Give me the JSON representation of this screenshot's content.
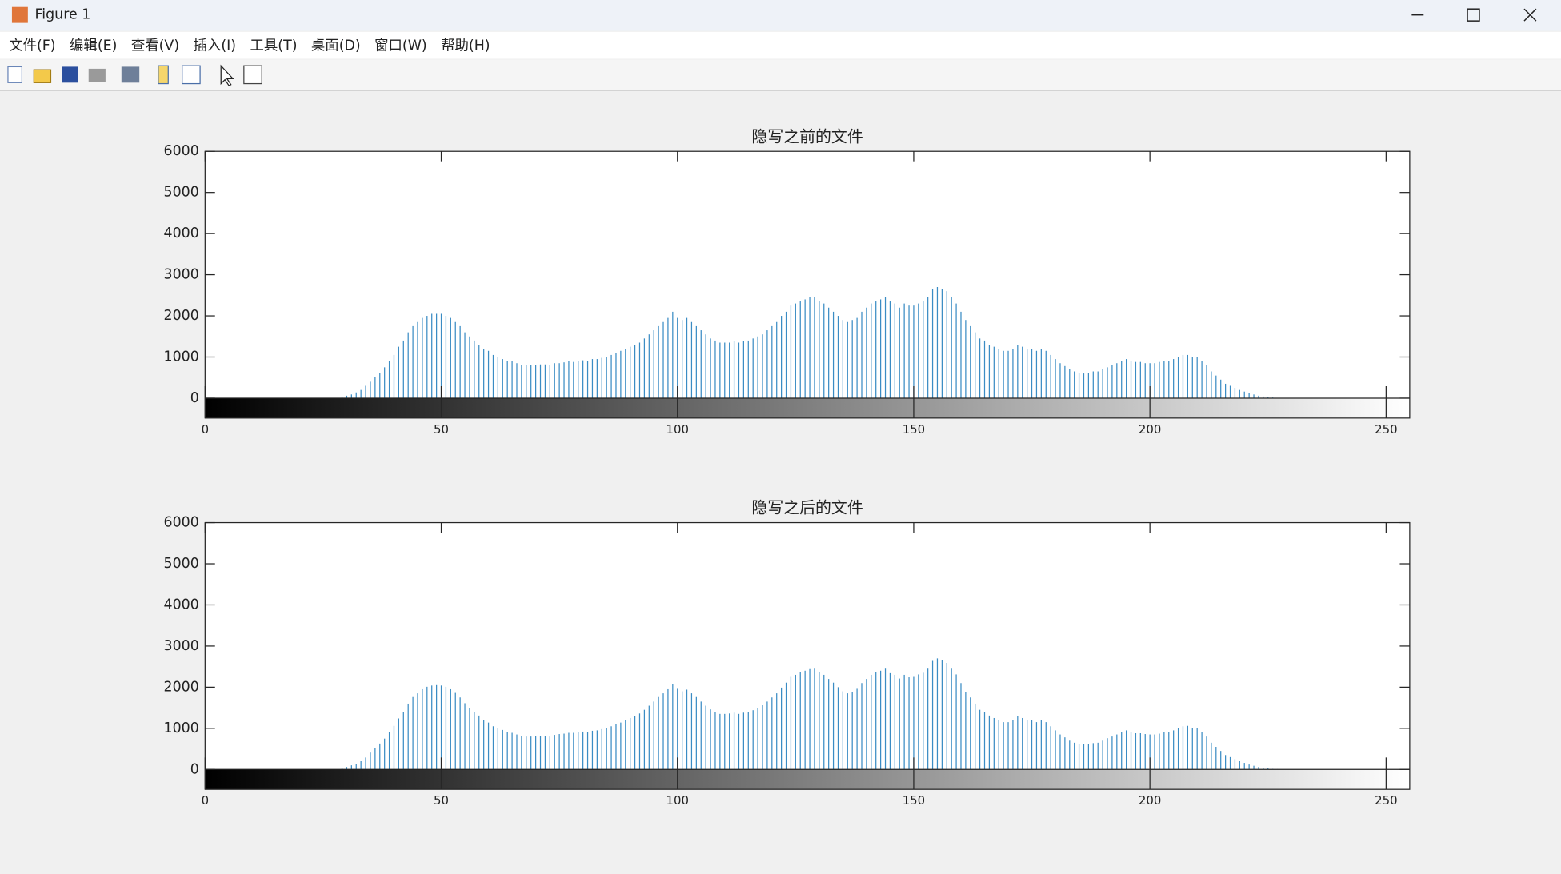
{
  "window": {
    "title": "Figure 1",
    "menu": [
      "文件(F)",
      "编辑(E)",
      "查看(V)",
      "插入(I)",
      "工具(T)",
      "桌面(D)",
      "窗口(W)",
      "帮助(H)"
    ]
  },
  "chart_data": [
    {
      "type": "stem",
      "title": "隐写之前的文件",
      "color": "#3a8cc4",
      "x": [
        0,
        1,
        2,
        3,
        4,
        5,
        6,
        7,
        8,
        9,
        10,
        11,
        12,
        13,
        14,
        15,
        16,
        17,
        18,
        19,
        20,
        21,
        22,
        23,
        24,
        25,
        26,
        27,
        28,
        29,
        30,
        31,
        32,
        33,
        34,
        35,
        36,
        37,
        38,
        39,
        40,
        41,
        42,
        43,
        44,
        45,
        46,
        47,
        48,
        49,
        50,
        51,
        52,
        53,
        54,
        55,
        56,
        57,
        58,
        59,
        60,
        61,
        62,
        63,
        64,
        65,
        66,
        67,
        68,
        69,
        70,
        71,
        72,
        73,
        74,
        75,
        76,
        77,
        78,
        79,
        80,
        81,
        82,
        83,
        84,
        85,
        86,
        87,
        88,
        89,
        90,
        91,
        92,
        93,
        94,
        95,
        96,
        97,
        98,
        99,
        100,
        101,
        102,
        103,
        104,
        105,
        106,
        107,
        108,
        109,
        110,
        111,
        112,
        113,
        114,
        115,
        116,
        117,
        118,
        119,
        120,
        121,
        122,
        123,
        124,
        125,
        126,
        127,
        128,
        129,
        130,
        131,
        132,
        133,
        134,
        135,
        136,
        137,
        138,
        139,
        140,
        141,
        142,
        143,
        144,
        145,
        146,
        147,
        148,
        149,
        150,
        151,
        152,
        153,
        154,
        155,
        156,
        157,
        158,
        159,
        160,
        161,
        162,
        163,
        164,
        165,
        166,
        167,
        168,
        169,
        170,
        171,
        172,
        173,
        174,
        175,
        176,
        177,
        178,
        179,
        180,
        181,
        182,
        183,
        184,
        185,
        186,
        187,
        188,
        189,
        190,
        191,
        192,
        193,
        194,
        195,
        196,
        197,
        198,
        199,
        200,
        201,
        202,
        203,
        204,
        205,
        206,
        207,
        208,
        209,
        210,
        211,
        212,
        213,
        214,
        215,
        216,
        217,
        218,
        219,
        220,
        221,
        222,
        223,
        224,
        225,
        226,
        227,
        228,
        229,
        230,
        231,
        232,
        233,
        234,
        235,
        236,
        237,
        238,
        239,
        240,
        241,
        242,
        243,
        244,
        245,
        246,
        247,
        248,
        249,
        250,
        251,
        252,
        253,
        254,
        255
      ],
      "values": [
        0,
        0,
        0,
        0,
        0,
        0,
        0,
        0,
        0,
        0,
        0,
        0,
        0,
        0,
        0,
        0,
        0,
        0,
        0,
        0,
        0,
        0,
        0,
        0,
        0,
        0,
        0,
        0,
        0,
        40,
        60,
        90,
        140,
        200,
        300,
        400,
        520,
        620,
        750,
        900,
        1050,
        1250,
        1400,
        1600,
        1750,
        1850,
        1950,
        2000,
        2050,
        2050,
        2050,
        2000,
        1950,
        1850,
        1750,
        1600,
        1500,
        1400,
        1300,
        1200,
        1150,
        1050,
        1000,
        950,
        900,
        900,
        850,
        800,
        800,
        800,
        800,
        820,
        820,
        800,
        850,
        850,
        870,
        900,
        880,
        900,
        920,
        900,
        950,
        950,
        980,
        1000,
        1050,
        1100,
        1150,
        1200,
        1250,
        1300,
        1350,
        1450,
        1550,
        1650,
        1750,
        1850,
        1950,
        2100,
        1950,
        1900,
        1950,
        1850,
        1750,
        1650,
        1550,
        1450,
        1400,
        1350,
        1350,
        1350,
        1380,
        1350,
        1380,
        1400,
        1450,
        1500,
        1550,
        1650,
        1750,
        1850,
        2000,
        2100,
        2250,
        2300,
        2350,
        2400,
        2450,
        2450,
        2350,
        2300,
        2200,
        2100,
        2000,
        1900,
        1850,
        1900,
        1950,
        2100,
        2200,
        2300,
        2350,
        2400,
        2450,
        2350,
        2300,
        2200,
        2300,
        2250,
        2250,
        2300,
        2350,
        2450,
        2650,
        2700,
        2650,
        2600,
        2450,
        2300,
        2100,
        1900,
        1750,
        1600,
        1450,
        1400,
        1300,
        1250,
        1200,
        1150,
        1150,
        1200,
        1300,
        1250,
        1200,
        1200,
        1150,
        1200,
        1150,
        1050,
        950,
        850,
        780,
        700,
        650,
        620,
        600,
        620,
        650,
        650,
        700,
        750,
        800,
        850,
        900,
        950,
        900,
        880,
        880,
        850,
        850,
        850,
        880,
        900,
        900,
        950,
        1000,
        1050,
        1050,
        1000,
        1000,
        900,
        800,
        650,
        550,
        450,
        350,
        300,
        250,
        200,
        160,
        120,
        90,
        60,
        40,
        25,
        15,
        8,
        4,
        2,
        0,
        0,
        0,
        0,
        0,
        0,
        0,
        0,
        0,
        0,
        0,
        0,
        0,
        0,
        0,
        0,
        0,
        0,
        0,
        0,
        0,
        0,
        0,
        0,
        0,
        0
      ],
      "xlim": [
        0,
        255
      ],
      "xticks": [
        0,
        50,
        100,
        150,
        200,
        250
      ],
      "ylim": [
        0,
        6000
      ],
      "yticks": [
        0,
        1000,
        2000,
        3000,
        4000,
        5000,
        6000
      ],
      "grid": false
    },
    {
      "type": "stem",
      "title": "隐写之后的文件",
      "color": "#3a8cc4",
      "x": [
        0,
        1,
        2,
        3,
        4,
        5,
        6,
        7,
        8,
        9,
        10,
        11,
        12,
        13,
        14,
        15,
        16,
        17,
        18,
        19,
        20,
        21,
        22,
        23,
        24,
        25,
        26,
        27,
        28,
        29,
        30,
        31,
        32,
        33,
        34,
        35,
        36,
        37,
        38,
        39,
        40,
        41,
        42,
        43,
        44,
        45,
        46,
        47,
        48,
        49,
        50,
        51,
        52,
        53,
        54,
        55,
        56,
        57,
        58,
        59,
        60,
        61,
        62,
        63,
        64,
        65,
        66,
        67,
        68,
        69,
        70,
        71,
        72,
        73,
        74,
        75,
        76,
        77,
        78,
        79,
        80,
        81,
        82,
        83,
        84,
        85,
        86,
        87,
        88,
        89,
        90,
        91,
        92,
        93,
        94,
        95,
        96,
        97,
        98,
        99,
        100,
        101,
        102,
        103,
        104,
        105,
        106,
        107,
        108,
        109,
        110,
        111,
        112,
        113,
        114,
        115,
        116,
        117,
        118,
        119,
        120,
        121,
        122,
        123,
        124,
        125,
        126,
        127,
        128,
        129,
        130,
        131,
        132,
        133,
        134,
        135,
        136,
        137,
        138,
        139,
        140,
        141,
        142,
        143,
        144,
        145,
        146,
        147,
        148,
        149,
        150,
        151,
        152,
        153,
        154,
        155,
        156,
        157,
        158,
        159,
        160,
        161,
        162,
        163,
        164,
        165,
        166,
        167,
        168,
        169,
        170,
        171,
        172,
        173,
        174,
        175,
        176,
        177,
        178,
        179,
        180,
        181,
        182,
        183,
        184,
        185,
        186,
        187,
        188,
        189,
        190,
        191,
        192,
        193,
        194,
        195,
        196,
        197,
        198,
        199,
        200,
        201,
        202,
        203,
        204,
        205,
        206,
        207,
        208,
        209,
        210,
        211,
        212,
        213,
        214,
        215,
        216,
        217,
        218,
        219,
        220,
        221,
        222,
        223,
        224,
        225,
        226,
        227,
        228,
        229,
        230,
        231,
        232,
        233,
        234,
        235,
        236,
        237,
        238,
        239,
        240,
        241,
        242,
        243,
        244,
        245,
        246,
        247,
        248,
        249,
        250,
        251,
        252,
        253,
        254,
        255
      ],
      "values": [
        0,
        0,
        0,
        0,
        0,
        0,
        0,
        0,
        0,
        0,
        0,
        0,
        0,
        0,
        0,
        0,
        0,
        0,
        0,
        0,
        0,
        0,
        0,
        0,
        0,
        0,
        0,
        0,
        0,
        40,
        60,
        100,
        140,
        200,
        290,
        410,
        520,
        630,
        750,
        900,
        1060,
        1240,
        1400,
        1600,
        1760,
        1850,
        1950,
        2010,
        2040,
        2050,
        2040,
        2010,
        1950,
        1860,
        1750,
        1610,
        1500,
        1400,
        1310,
        1200,
        1140,
        1050,
        1000,
        960,
        900,
        890,
        850,
        810,
        800,
        800,
        810,
        820,
        810,
        800,
        840,
        860,
        870,
        890,
        890,
        900,
        920,
        910,
        940,
        950,
        980,
        1010,
        1050,
        1100,
        1140,
        1200,
        1250,
        1300,
        1360,
        1450,
        1550,
        1650,
        1760,
        1850,
        1950,
        2080,
        1960,
        1900,
        1940,
        1850,
        1760,
        1650,
        1550,
        1460,
        1400,
        1350,
        1350,
        1360,
        1380,
        1350,
        1380,
        1400,
        1440,
        1500,
        1560,
        1650,
        1750,
        1850,
        1990,
        2110,
        2250,
        2300,
        2360,
        2400,
        2440,
        2450,
        2360,
        2300,
        2200,
        2110,
        2000,
        1900,
        1850,
        1890,
        1960,
        2100,
        2200,
        2300,
        2360,
        2400,
        2450,
        2340,
        2300,
        2210,
        2300,
        2240,
        2250,
        2310,
        2350,
        2450,
        2640,
        2700,
        2650,
        2590,
        2450,
        2310,
        2100,
        1890,
        1750,
        1600,
        1450,
        1400,
        1310,
        1250,
        1200,
        1150,
        1150,
        1200,
        1300,
        1250,
        1200,
        1210,
        1150,
        1200,
        1150,
        1050,
        950,
        850,
        780,
        700,
        650,
        620,
        610,
        620,
        640,
        650,
        700,
        760,
        800,
        850,
        900,
        950,
        900,
        880,
        880,
        860,
        850,
        850,
        870,
        900,
        900,
        950,
        1000,
        1050,
        1060,
        1000,
        1000,
        900,
        800,
        650,
        550,
        450,
        350,
        300,
        250,
        200,
        160,
        120,
        90,
        60,
        40,
        25,
        15,
        8,
        4,
        2,
        0,
        0,
        0,
        0,
        0,
        0,
        0,
        0,
        0,
        0,
        0,
        0,
        0,
        0,
        0,
        0,
        0,
        0,
        0,
        0,
        0,
        0,
        0,
        0,
        0,
        0
      ],
      "xlim": [
        0,
        255
      ],
      "xticks": [
        0,
        50,
        100,
        150,
        200,
        250
      ],
      "ylim": [
        0,
        6000
      ],
      "yticks": [
        0,
        1000,
        2000,
        3000,
        4000,
        5000,
        6000
      ],
      "grid": false
    }
  ]
}
